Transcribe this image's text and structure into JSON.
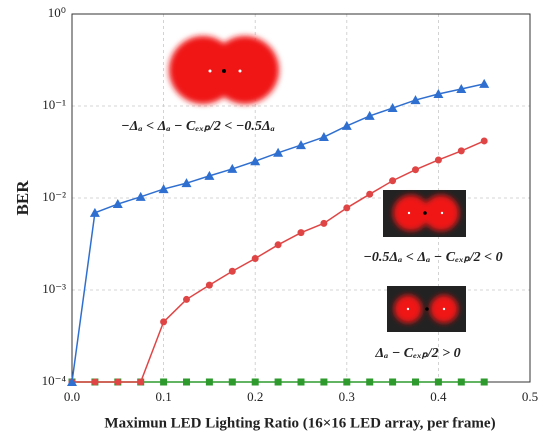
{
  "chart_data": {
    "type": "line",
    "y_label": "BER",
    "x_label": "Maximun LED Lighting Ratio (16×16 LED array, per frame)",
    "xlim": [
      0,
      0.5
    ],
    "xticks": [
      {
        "value": 0,
        "label": "0.0"
      },
      0.1,
      0.2,
      0.3,
      0.4,
      0.5
    ],
    "ylim": [
      0.0001,
      1
    ],
    "log_y": true,
    "grid": true,
    "yticks": [
      {
        "value": 0.0001,
        "label": "10⁻⁴"
      },
      {
        "value": 0.001,
        "label": "10⁻³"
      },
      {
        "value": 0.01,
        "label": "10⁻²"
      },
      {
        "value": 0.1,
        "label": "10⁻¹"
      },
      {
        "value": 1,
        "label": "10⁰"
      }
    ],
    "series": [
      {
        "color": "#2f6fd0",
        "marker": "triangle",
        "x": [
          0,
          0.025,
          0.05,
          0.075,
          0.1,
          0.125,
          0.15,
          0.175,
          0.2,
          0.225,
          0.25,
          0.275,
          0.3,
          0.325,
          0.35,
          0.375,
          0.4,
          0.425,
          0.45
        ],
        "values": [
          0.0001,
          0.0069,
          0.0086,
          0.0103,
          0.0125,
          0.0145,
          0.0174,
          0.0207,
          0.0251,
          0.031,
          0.0376,
          0.046,
          0.0608,
          0.078,
          0.095,
          0.116,
          0.135,
          0.153,
          0.174
        ]
      },
      {
        "color": "#e04545",
        "marker": "circle",
        "x": [
          0,
          0.025,
          0.05,
          0.075,
          0.1,
          0.125,
          0.15,
          0.175,
          0.2,
          0.225,
          0.25,
          0.275,
          0.3,
          0.325,
          0.35,
          0.375,
          0.4,
          0.425,
          0.45
        ],
        "values": [
          0.0001,
          0.0001,
          0.0001,
          0.0001,
          0.00045,
          0.00079,
          0.00113,
          0.0016,
          0.0022,
          0.0031,
          0.0042,
          0.0053,
          0.0078,
          0.011,
          0.0154,
          0.0203,
          0.0259,
          0.0325,
          0.0417
        ]
      },
      {
        "color": "#2e9a2e",
        "marker": "square",
        "x": [
          0,
          0.025,
          0.05,
          0.075,
          0.1,
          0.125,
          0.15,
          0.175,
          0.2,
          0.225,
          0.25,
          0.275,
          0.3,
          0.325,
          0.35,
          0.375,
          0.4,
          0.425,
          0.45
        ],
        "values": [
          0.0001,
          0.0001,
          0.0001,
          0.0001,
          0.0001,
          0.0001,
          0.0001,
          0.0001,
          0.0001,
          0.0001,
          0.0001,
          0.0001,
          0.0001,
          0.0001,
          0.0001,
          0.0001,
          0.0001,
          0.0001,
          0.0001
        ]
      }
    ],
    "annotations": [
      "−Δₐ < Δₐ − Cₑₓₚ/2 < −0.5Δₐ",
      "−0.5Δₐ < Δₐ − Cₑₓₚ/2 < 0",
      "Δₐ − Cₑₓₚ/2 > 0"
    ]
  }
}
